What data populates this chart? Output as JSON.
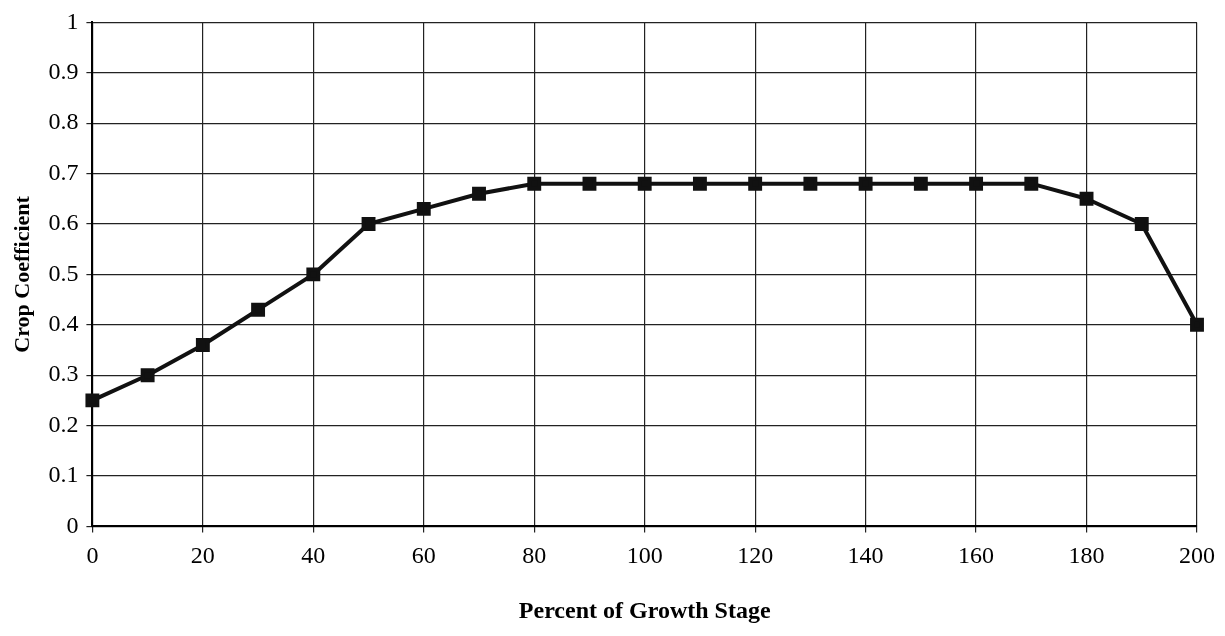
{
  "chart_data": {
    "type": "line",
    "xlabel": "Percent of Growth Stage",
    "ylabel": "Crop Coefficient",
    "x": [
      0,
      10,
      20,
      30,
      40,
      50,
      60,
      70,
      80,
      90,
      100,
      110,
      120,
      130,
      140,
      150,
      160,
      170,
      180,
      190,
      200
    ],
    "series": [
      {
        "color": "#111111",
        "values": [
          0.25,
          0.3,
          0.36,
          0.43,
          0.5,
          0.6,
          0.63,
          0.66,
          0.68,
          0.68,
          0.68,
          0.68,
          0.68,
          0.68,
          0.68,
          0.68,
          0.68,
          0.68,
          0.65,
          0.6,
          0.4
        ]
      }
    ],
    "xlim": [
      0,
      200
    ],
    "xticks": [
      0,
      20,
      40,
      60,
      80,
      100,
      120,
      140,
      160,
      180,
      200
    ],
    "ylim": [
      0,
      1
    ],
    "yticks": [
      0,
      0.1,
      0.2,
      0.3,
      0.4,
      0.5,
      0.6,
      0.7,
      0.8,
      0.9,
      1
    ],
    "grid": true,
    "legend": false,
    "marker": "square",
    "line_style": "solid"
  }
}
